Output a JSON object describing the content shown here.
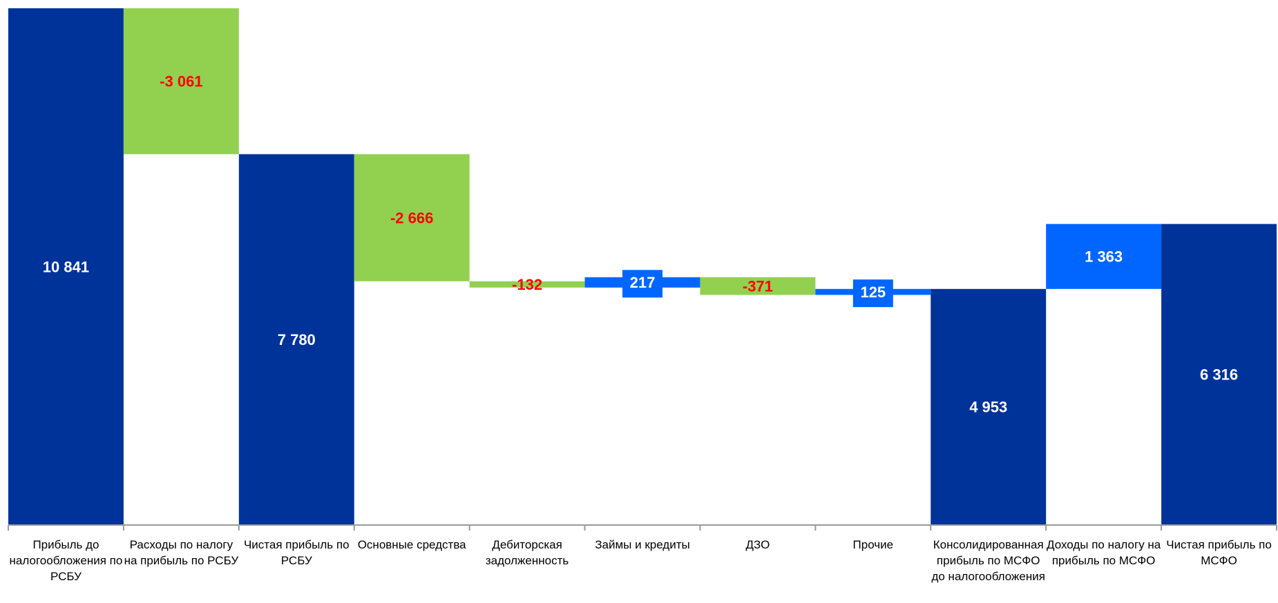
{
  "chart_data": {
    "type": "waterfall",
    "categories": [
      "Прибыль до налогообложения по РСБУ",
      "Расходы по налогу на прибыль по РСБУ",
      "Чистая прибыль по РСБУ",
      "Основные средства",
      "Дебиторская задолженность",
      "Займы и кредиты",
      "ДЗО",
      "Прочие",
      "Консолидированная прибыль по МСФО до налогообложения",
      "Доходы по налогу на прибыль по МСФО",
      "Чистая прибыль по МСФО"
    ],
    "values": [
      10841,
      -3061,
      7780,
      -2666,
      -132,
      217,
      -371,
      125,
      4953,
      1363,
      6316
    ],
    "value_labels": [
      "10 841",
      "-3 061",
      "7 780",
      "-2 666",
      "-132",
      "217",
      "-371",
      "125",
      "4 953",
      "1 363",
      "6 316"
    ],
    "totals": [
      true,
      false,
      true,
      false,
      false,
      false,
      false,
      false,
      true,
      false,
      true
    ],
    "total_color": "#003399",
    "increase_color": "#0066ff",
    "decrease_color": "#92d050",
    "label_color": "#ffffff",
    "negative_label_color": "#ff0000"
  }
}
